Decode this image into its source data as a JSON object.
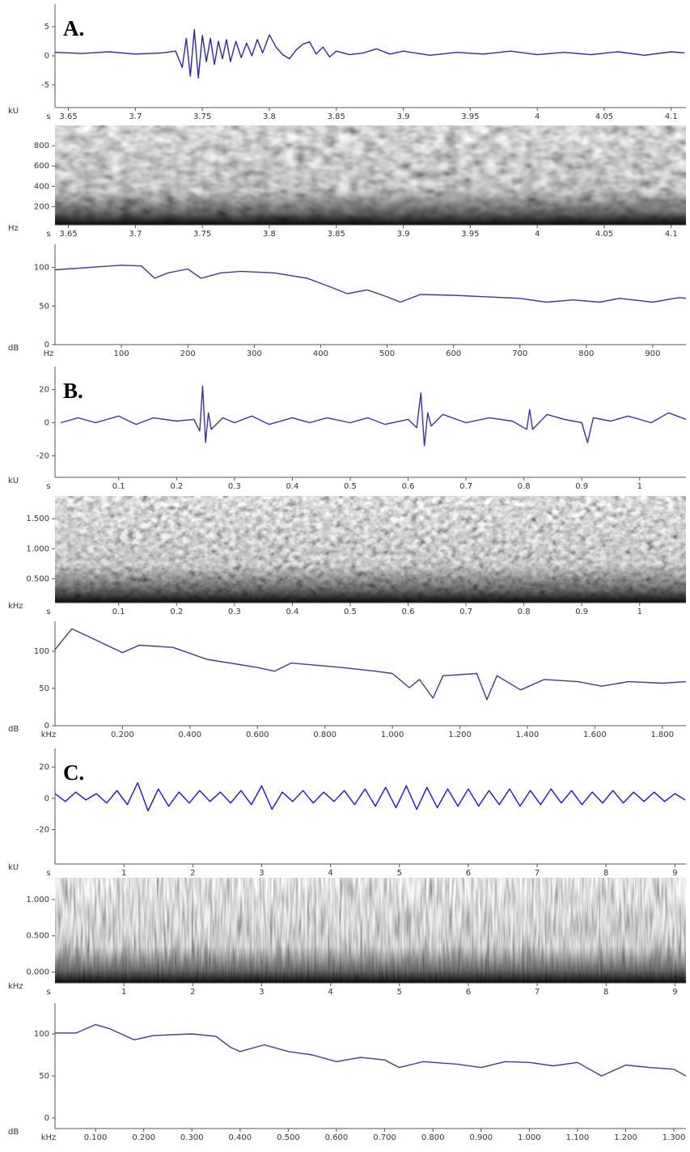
{
  "chart_data": [
    {
      "type": "line",
      "annotation": "A.",
      "xlabel": "s",
      "ylabel": "kU",
      "color": "#2a2a9c",
      "xlim": [
        3.64,
        4.111
      ],
      "ylim": [
        -8.9,
        8.9
      ],
      "xticks": [
        3.65,
        3.7,
        3.75,
        3.8,
        3.85,
        3.9,
        3.95,
        4,
        4.05,
        4.1
      ],
      "yticks": [
        5,
        0,
        -5
      ],
      "x": [
        3.64,
        3.66,
        3.68,
        3.7,
        3.72,
        3.73,
        3.735,
        3.738,
        3.741,
        3.744,
        3.747,
        3.75,
        3.753,
        3.756,
        3.759,
        3.762,
        3.765,
        3.768,
        3.771,
        3.775,
        3.779,
        3.783,
        3.787,
        3.791,
        3.795,
        3.8,
        3.805,
        3.81,
        3.815,
        3.82,
        3.825,
        3.83,
        3.835,
        3.84,
        3.845,
        3.85,
        3.86,
        3.87,
        3.88,
        3.89,
        3.9,
        3.92,
        3.94,
        3.96,
        3.98,
        4.0,
        4.02,
        4.04,
        4.06,
        4.08,
        4.1,
        4.11
      ],
      "values": [
        0.6,
        0.4,
        0.7,
        0.3,
        0.5,
        0.8,
        -2,
        3,
        -3.5,
        4.5,
        -3.8,
        3.5,
        -1,
        3,
        -1.5,
        2.5,
        -0.5,
        2.8,
        -1,
        2.5,
        -0.3,
        2.2,
        0,
        2.8,
        0.5,
        3.6,
        1.5,
        0.2,
        -0.5,
        1,
        2,
        2.4,
        0.3,
        1.5,
        -0.2,
        0.8,
        0.2,
        0.5,
        1.2,
        0.3,
        0.8,
        0.1,
        0.6,
        0.3,
        0.8,
        0.2,
        0.6,
        0.2,
        0.7,
        0.1,
        0.7,
        0.5
      ]
    },
    {
      "type": "spectrogram",
      "xlabel": "s",
      "ylabel": "Hz",
      "xlim": [
        3.64,
        4.111
      ],
      "ylim": [
        20,
        1000
      ],
      "xticks": [
        3.65,
        3.7,
        3.75,
        3.8,
        3.85,
        3.9,
        3.95,
        4,
        4.05,
        4.1
      ],
      "yticks": [
        200,
        400,
        600,
        800
      ]
    },
    {
      "type": "line",
      "xlabel": "Hz",
      "ylabel": "dB",
      "color": "#3b3b98",
      "xlim": [
        0,
        950
      ],
      "ylim": [
        0,
        130
      ],
      "xticks": [
        100,
        200,
        300,
        400,
        500,
        600,
        700,
        800,
        900
      ],
      "yticks": [
        0,
        50,
        100
      ],
      "x": [
        0,
        100,
        130,
        150,
        170,
        200,
        220,
        250,
        280,
        330,
        380,
        420,
        440,
        470,
        500,
        520,
        550,
        600,
        650,
        700,
        740,
        780,
        820,
        850,
        900,
        940,
        950
      ],
      "values": [
        97,
        103,
        102,
        86,
        93,
        98,
        86,
        93,
        95,
        93,
        86,
        73,
        66,
        71,
        62,
        55,
        65,
        64,
        62,
        60,
        55,
        58,
        55,
        60,
        55,
        61,
        60
      ]
    },
    {
      "type": "line",
      "annotation": "B.",
      "xlabel": "s",
      "ylabel": "kU",
      "color": "#3434b0",
      "xlim": [
        -0.01,
        1.08
      ],
      "ylim": [
        -33,
        34
      ],
      "xticks": [
        0.1,
        0.2,
        0.3,
        0.4,
        0.5,
        0.6,
        0.7,
        0.8,
        0.9,
        1
      ],
      "yticks": [
        20,
        0,
        -20
      ],
      "x": [
        0,
        0.03,
        0.06,
        0.1,
        0.13,
        0.16,
        0.2,
        0.23,
        0.24,
        0.245,
        0.25,
        0.255,
        0.26,
        0.28,
        0.3,
        0.33,
        0.36,
        0.4,
        0.43,
        0.46,
        0.5,
        0.53,
        0.56,
        0.6,
        0.615,
        0.622,
        0.628,
        0.634,
        0.64,
        0.66,
        0.7,
        0.74,
        0.78,
        0.805,
        0.81,
        0.815,
        0.84,
        0.87,
        0.9,
        0.91,
        0.92,
        0.95,
        0.98,
        1.02,
        1.05,
        1.08
      ],
      "values": [
        0,
        3,
        0,
        4,
        -1,
        3,
        1,
        2,
        -5,
        22,
        -12,
        6,
        -4,
        3,
        0,
        4,
        -1,
        3,
        0,
        3,
        0,
        3,
        -1,
        2,
        -3,
        18,
        -14,
        6,
        -2,
        5,
        0,
        3,
        1,
        -4,
        8,
        -4,
        5,
        2,
        0,
        -12,
        3,
        1,
        4,
        0,
        6,
        2
      ]
    },
    {
      "type": "spectrogram",
      "xlabel": "s",
      "ylabel": "kHz",
      "xlim": [
        -0.01,
        1.08
      ],
      "ylim": [
        0.1,
        1.88
      ],
      "xticks": [
        0.1,
        0.2,
        0.3,
        0.4,
        0.5,
        0.6,
        0.7,
        0.8,
        0.9,
        1
      ],
      "yticks": [
        {
          "value": 1.5,
          "label": "1.500"
        },
        {
          "value": 1,
          "label": "1.000"
        },
        {
          "value": 0.5,
          "label": "0.500"
        }
      ]
    },
    {
      "type": "line",
      "xlabel": "kHz",
      "ylabel": "dB",
      "color": "#3b3b98",
      "xlim": [
        0,
        1.87
      ],
      "ylim": [
        0,
        140
      ],
      "xticks": [
        {
          "value": 0.2,
          "label": "0.200"
        },
        {
          "value": 0.4,
          "label": "0.400"
        },
        {
          "value": 0.6,
          "label": "0.600"
        },
        {
          "value": 0.8,
          "label": "0.800"
        },
        {
          "value": 1,
          "label": "1.000"
        },
        {
          "value": 1.2,
          "label": "1.200"
        },
        {
          "value": 1.4,
          "label": "1.400"
        },
        {
          "value": 1.6,
          "label": "1.600"
        },
        {
          "value": 1.8,
          "label": "1.800"
        }
      ],
      "yticks": [
        0,
        50,
        100
      ],
      "x": [
        0,
        0.05,
        0.2,
        0.25,
        0.35,
        0.45,
        0.6,
        0.65,
        0.7,
        0.85,
        0.95,
        1.0,
        1.05,
        1.08,
        1.12,
        1.15,
        1.25,
        1.28,
        1.31,
        1.38,
        1.45,
        1.55,
        1.62,
        1.7,
        1.8,
        1.87
      ],
      "values": [
        102,
        130,
        98,
        108,
        105,
        89,
        78,
        73,
        84,
        78,
        73,
        70,
        51,
        62,
        37,
        67,
        70,
        35,
        67,
        48,
        62,
        59,
        53,
        59,
        57,
        59
      ]
    },
    {
      "type": "line",
      "annotation": "C.",
      "xlabel": "s",
      "ylabel": "kU",
      "color": "#1414f0",
      "xlim": [
        0,
        9.16
      ],
      "ylim": [
        -42,
        32
      ],
      "xticks": [
        1,
        2,
        3,
        4,
        5,
        6,
        7,
        8,
        9
      ],
      "yticks": [
        20,
        0,
        -20
      ],
      "x": [
        0,
        0.15,
        0.3,
        0.45,
        0.6,
        0.75,
        0.9,
        1.05,
        1.2,
        1.35,
        1.5,
        1.65,
        1.8,
        1.95,
        2.1,
        2.25,
        2.4,
        2.55,
        2.7,
        2.85,
        3,
        3.15,
        3.3,
        3.45,
        3.6,
        3.75,
        3.9,
        4.05,
        4.2,
        4.35,
        4.5,
        4.65,
        4.8,
        4.95,
        5.1,
        5.25,
        5.4,
        5.55,
        5.7,
        5.85,
        6,
        6.15,
        6.3,
        6.45,
        6.6,
        6.75,
        6.9,
        7.05,
        7.2,
        7.35,
        7.5,
        7.65,
        7.8,
        7.95,
        8.1,
        8.25,
        8.4,
        8.55,
        8.7,
        8.85,
        9,
        9.15
      ],
      "values": [
        3,
        -2,
        4,
        -1,
        3,
        -3,
        5,
        -4,
        10,
        -8,
        6,
        -5,
        4,
        -3,
        5,
        -2,
        4,
        -3,
        5,
        -4,
        8,
        -7,
        4,
        -2,
        5,
        -3,
        4,
        -2,
        5,
        -4,
        6,
        -5,
        7,
        -6,
        8,
        -7,
        7,
        -6,
        6,
        -5,
        6,
        -5,
        5,
        -4,
        6,
        -5,
        5,
        -4,
        6,
        -3,
        5,
        -4,
        4,
        -3,
        5,
        -3,
        4,
        -2,
        4,
        -2,
        3,
        -1
      ]
    },
    {
      "type": "spectrogram",
      "xlabel": "s",
      "ylabel": "kHz",
      "xlim": [
        0,
        9.16
      ],
      "ylim": [
        -0.15,
        1.3
      ],
      "xticks": [
        1,
        2,
        3,
        4,
        5,
        6,
        7,
        8,
        9
      ],
      "yticks": [
        {
          "value": 1,
          "label": "1.000"
        },
        {
          "value": 0.5,
          "label": "0.500"
        },
        {
          "value": 0,
          "label": "0.000"
        }
      ]
    },
    {
      "type": "line",
      "xlabel": "kHz",
      "ylabel": "dB",
      "color": "#3b3b98",
      "xlim": [
        0.016,
        1.325
      ],
      "ylim": [
        -12.5,
        136.5
      ],
      "xticks": [
        {
          "value": 0.1,
          "label": "0.100"
        },
        {
          "value": 0.2,
          "label": "0.200"
        },
        {
          "value": 0.3,
          "label": "0.300"
        },
        {
          "value": 0.4,
          "label": "0.400"
        },
        {
          "value": 0.5,
          "label": "0.500"
        },
        {
          "value": 0.6,
          "label": "0.600"
        },
        {
          "value": 0.7,
          "label": "0.700"
        },
        {
          "value": 0.8,
          "label": "0.800"
        },
        {
          "value": 0.9,
          "label": "0.900"
        },
        {
          "value": 1,
          "label": "1.000"
        },
        {
          "value": 1.1,
          "label": "1.100"
        },
        {
          "value": 1.2,
          "label": "1.200"
        },
        {
          "value": 1.3,
          "label": "1.300"
        }
      ],
      "yticks": [
        0,
        50,
        100
      ],
      "x": [
        0.016,
        0.06,
        0.1,
        0.13,
        0.18,
        0.22,
        0.3,
        0.35,
        0.38,
        0.4,
        0.45,
        0.5,
        0.55,
        0.6,
        0.65,
        0.7,
        0.73,
        0.78,
        0.85,
        0.9,
        0.95,
        1.0,
        1.05,
        1.1,
        1.15,
        1.2,
        1.25,
        1.3,
        1.325
      ],
      "values": [
        101,
        101,
        111,
        106,
        93,
        98,
        100,
        97,
        84,
        79,
        87,
        79,
        75,
        67,
        72,
        69,
        60,
        67,
        64,
        60,
        67,
        66,
        62,
        66,
        50,
        63,
        60,
        58,
        50
      ]
    }
  ]
}
